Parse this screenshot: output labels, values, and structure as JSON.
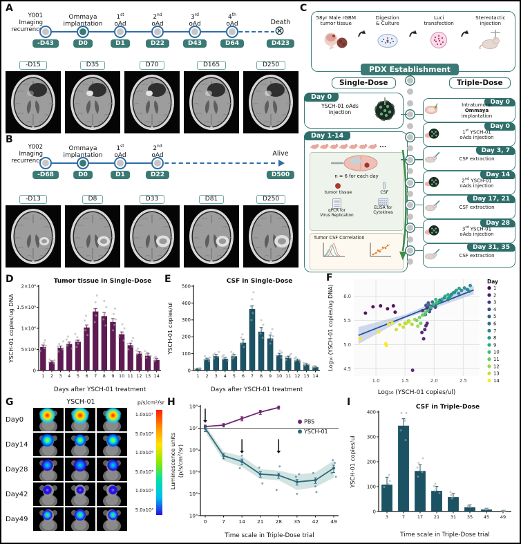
{
  "letters": {
    "A": "A",
    "B": "B",
    "C": "C",
    "D": "D",
    "E": "E",
    "F": "F",
    "G": "G",
    "H": "H",
    "I": "I"
  },
  "colors": {
    "teal_chip": "#3b7a74",
    "teal_border": "#3c7d78",
    "header_teal": "#2e6e6a",
    "node_line": "#2e6ca6",
    "bar_purple": "#5e1a52",
    "bar_teal": "#1c5364",
    "pbs": "#6f2472",
    "ysch": "#2e6b7c",
    "reg_line": "#1f4e9c",
    "reg_band": "#aabbdd",
    "viridis": [
      "#440154",
      "#471d6c",
      "#453581",
      "#3d4d8a",
      "#34618d",
      "#2b748e",
      "#24878e",
      "#1f998a",
      "#25ab82",
      "#3fbc73",
      "#67cc5c",
      "#97d83f",
      "#cade24",
      "#fde725"
    ]
  },
  "panelA": {
    "patient": {
      "l1": "Y001",
      "l2": "Imaging",
      "l3": "recurrence"
    },
    "events": [
      {
        "day": "-D43"
      },
      {
        "t1": "Ommaya",
        "t2": "implantation",
        "day": "D0",
        "filled": true
      },
      {
        "num": "1",
        "sup": "st",
        "word": "oAd",
        "day": "D1"
      },
      {
        "num": "2",
        "sup": "nd",
        "word": "oAd",
        "day": "D22"
      },
      {
        "num": "3",
        "sup": "rd",
        "word": "oAd",
        "day": "D43"
      },
      {
        "num": "4",
        "sup": "th",
        "word": "oAd",
        "day": "D64"
      }
    ],
    "terminal": {
      "label": "Death",
      "day": "D423",
      "type": "death",
      "icon": "⊗"
    },
    "mri_type": "dark",
    "mri": [
      {
        "label": "-D15",
        "bright": 0.35
      },
      {
        "label": "D35",
        "bright": 1
      },
      {
        "label": "D70",
        "bright": 1
      },
      {
        "label": "D165",
        "bright": 0.55
      },
      {
        "label": "D250",
        "bright": 0.6
      }
    ]
  },
  "panelB": {
    "patient": {
      "l1": "Y002",
      "l2": "Imaging",
      "l3": "recurrence"
    },
    "events": [
      {
        "day": "-D68"
      },
      {
        "t1": "Ommaya",
        "t2": "implantation",
        "day": "D0",
        "filled": true
      },
      {
        "num": "1",
        "sup": "st",
        "word": "oAd",
        "day": "D1"
      },
      {
        "num": "2",
        "sup": "nd",
        "word": "oAd",
        "day": "D22"
      }
    ],
    "terminal": {
      "label": "Alive",
      "day": "D500",
      "type": "alive"
    },
    "mri_type": "bright",
    "mri": [
      {
        "label": "-D13",
        "k": 0.8
      },
      {
        "label": "D8",
        "k": 1
      },
      {
        "label": "D33",
        "k": 1.12
      },
      {
        "label": "D81",
        "k": 1.05
      },
      {
        "label": "D250",
        "k": 1.2
      }
    ]
  },
  "panelC": {
    "flow": [
      {
        "l1": "58yr Male rGBM",
        "l2": "tumor tissue",
        "icon": "brain"
      },
      {
        "l1": "Digestion",
        "l2": "& Culture",
        "icon": "petri"
      },
      {
        "l1": "Luci",
        "l2": "transfection",
        "icon": "luci"
      },
      {
        "l1": "Stereotactic",
        "l2": "injection",
        "icon": "stereo"
      }
    ],
    "banner": "PDX Establishment",
    "arms": {
      "single": "Single-Dose",
      "triple": "Triple-Dose"
    },
    "single_day0": {
      "header": "Day 0",
      "l1": "YSCH-01 oAds",
      "l2": "injection"
    },
    "day114": {
      "header": "Day 1-14",
      "dots": "...",
      "n_label": "n = 6 for each day",
      "tumor": "tumor tissue",
      "csf": "CSF",
      "qpcr_l1": "qPCR for",
      "qpcr_l2": "Virus Replication",
      "elisa_l1": "ELISA for",
      "elisa_l2": "Cytokines",
      "corr": "Tumor CSF Correlation"
    },
    "triple": [
      {
        "header": "Day 0",
        "body": "Intratumoral\nOmmaya\nimplantation",
        "icon": "slice"
      },
      {
        "header": "Day 0",
        "body": "1st YSCH-01\noAds injection",
        "icon": "dish"
      },
      {
        "header": "Day 3, 7",
        "body": "CSF extraction",
        "icon": "syr"
      },
      {
        "header": "Day 14",
        "body": "2nd YSCH-01\noAds injection",
        "icon": "dish"
      },
      {
        "header": "Day 17, 21",
        "body": "CSF extraction",
        "icon": "syr"
      },
      {
        "header": "Day 28",
        "body": "3rd YSCH-01\noAds injection",
        "icon": "dish"
      },
      {
        "header": "Day 31, 35",
        "body": "CSF extraction",
        "icon": "syr"
      }
    ]
  },
  "chart_data": [
    {
      "id": "D",
      "type": "bar",
      "title": "Tumor tissue in Single-Dose",
      "ylabel": "YSCH-01 copies/ug DNA",
      "xlabel": "Days after YSCH-01 treatment",
      "categories": [
        "1",
        "2",
        "3",
        "4",
        "5",
        "6",
        "7",
        "8",
        "9",
        "10",
        "11",
        "12",
        "13",
        "14"
      ],
      "values": [
        560000,
        200000,
        540000,
        630000,
        680000,
        1020000,
        1400000,
        1290000,
        1150000,
        860000,
        600000,
        400000,
        350000,
        250000
      ],
      "errors": [
        45000,
        30000,
        40000,
        45000,
        40000,
        60000,
        70000,
        90000,
        80000,
        55000,
        50000,
        45000,
        60000,
        40000
      ],
      "bar_color": "#5e1a52",
      "ylim": [
        0,
        2000000
      ],
      "yticks": [
        {
          "v": 0,
          "label": "0"
        },
        {
          "v": 500000,
          "label": "5×10⁵"
        },
        {
          "v": 1000000,
          "label": "1×10⁶"
        },
        {
          "v": 1500000,
          "label": "1.5×10⁶"
        },
        {
          "v": 2000000,
          "label": "2×10⁶"
        }
      ]
    },
    {
      "id": "E",
      "type": "bar",
      "title": "CSF in Single-Dose",
      "ylabel": "YSCH-01 copies/ul",
      "xlabel": "Days after YSCH-01 treatment",
      "categories": [
        "1",
        "2",
        "3",
        "4",
        "5",
        "6",
        "7",
        "8",
        "9",
        "10",
        "11",
        "12",
        "13",
        "14"
      ],
      "values": [
        10,
        65,
        85,
        70,
        85,
        165,
        365,
        230,
        190,
        90,
        75,
        60,
        35,
        20
      ],
      "errors": [
        3,
        8,
        10,
        8,
        10,
        20,
        18,
        25,
        20,
        12,
        10,
        8,
        6,
        5
      ],
      "bar_color": "#1c5364",
      "ylim": [
        0,
        500
      ],
      "yticks": [
        {
          "v": 0,
          "label": "0"
        },
        {
          "v": 100,
          "label": "100"
        },
        {
          "v": 200,
          "label": "200"
        },
        {
          "v": 300,
          "label": "300"
        },
        {
          "v": 400,
          "label": "400"
        },
        {
          "v": 500,
          "label": "500"
        }
      ]
    },
    {
      "id": "F",
      "type": "scatter",
      "xlabel": "Log₁₀ (YSCH-01 copies/ul)",
      "ylabel": "Log₁₀ (YSCH-01 copies/ug DNA)",
      "legend_title": "Day",
      "xlim": [
        0.62,
        2.78
      ],
      "ylim": [
        4.35,
        6.35
      ],
      "xticks": [
        1.0,
        1.5,
        2.0,
        2.5
      ],
      "yticks": [
        4.5,
        5.0,
        5.5,
        6.0
      ],
      "regression": {
        "x1": 0.7,
        "y1": 5.19,
        "x2": 2.68,
        "y2": 6.13,
        "line_color": "#1f4e9c",
        "band_color": "#aabbdd",
        "band": [
          [
            0.7,
            5.36
          ],
          [
            1.5,
            5.62
          ],
          [
            2.68,
            6.22
          ],
          [
            2.68,
            6.04
          ],
          [
            1.5,
            5.54
          ],
          [
            0.7,
            5.01
          ]
        ]
      },
      "points": [
        [
          1,
          0.82,
          5.65
        ],
        [
          1,
          0.95,
          5.78
        ],
        [
          1,
          1.08,
          5.8
        ],
        [
          1,
          1.2,
          5.74
        ],
        [
          1,
          1.3,
          5.8
        ],
        [
          1,
          1.33,
          5.67
        ],
        [
          2,
          1.63,
          4.47
        ],
        [
          2,
          1.79,
          5.25
        ],
        [
          2,
          1.82,
          5.12
        ],
        [
          2,
          1.84,
          5.31
        ],
        [
          2,
          1.86,
          5.39
        ],
        [
          2,
          1.88,
          5.44
        ],
        [
          3,
          1.8,
          5.7
        ],
        [
          3,
          1.85,
          5.62
        ],
        [
          3,
          1.88,
          5.76
        ],
        [
          3,
          1.92,
          5.68
        ],
        [
          3,
          1.95,
          5.79
        ],
        [
          4,
          1.86,
          5.81
        ],
        [
          4,
          1.9,
          5.86
        ],
        [
          4,
          1.94,
          5.74
        ],
        [
          4,
          1.99,
          5.82
        ],
        [
          4,
          2.02,
          5.77
        ],
        [
          5,
          1.92,
          5.8
        ],
        [
          5,
          1.97,
          5.88
        ],
        [
          5,
          2.02,
          5.79
        ],
        [
          5,
          2.06,
          5.86
        ],
        [
          5,
          2.1,
          5.92
        ],
        [
          6,
          2.12,
          5.9
        ],
        [
          6,
          2.18,
          5.97
        ],
        [
          6,
          2.24,
          5.93
        ],
        [
          6,
          2.3,
          6.04
        ],
        [
          6,
          2.35,
          6.08
        ],
        [
          7,
          2.42,
          6.06
        ],
        [
          7,
          2.47,
          6.12
        ],
        [
          7,
          2.52,
          6.17
        ],
        [
          7,
          2.57,
          6.14
        ],
        [
          7,
          2.62,
          6.22
        ],
        [
          7,
          2.6,
          6.1
        ],
        [
          8,
          2.28,
          6.0
        ],
        [
          8,
          2.33,
          6.07
        ],
        [
          8,
          2.38,
          6.12
        ],
        [
          8,
          2.43,
          6.16
        ],
        [
          8,
          2.25,
          5.96
        ],
        [
          9,
          2.08,
          5.88
        ],
        [
          9,
          2.14,
          5.94
        ],
        [
          9,
          2.19,
          6.0
        ],
        [
          9,
          2.24,
          6.03
        ],
        [
          9,
          2.03,
          5.93
        ],
        [
          10,
          1.84,
          5.62
        ],
        [
          10,
          1.89,
          5.7
        ],
        [
          10,
          1.94,
          5.77
        ],
        [
          10,
          1.99,
          5.83
        ],
        [
          10,
          2.04,
          5.86
        ],
        [
          11,
          1.7,
          5.5
        ],
        [
          11,
          1.75,
          5.56
        ],
        [
          11,
          1.8,
          5.61
        ],
        [
          11,
          1.85,
          5.66
        ],
        [
          11,
          1.77,
          5.44
        ],
        [
          12,
          1.5,
          5.44
        ],
        [
          12,
          1.56,
          5.49
        ],
        [
          12,
          1.62,
          5.42
        ],
        [
          12,
          1.67,
          5.52
        ],
        [
          12,
          1.72,
          5.38
        ],
        [
          13,
          1.35,
          5.31
        ],
        [
          13,
          1.41,
          5.41
        ],
        [
          13,
          1.47,
          5.36
        ],
        [
          13,
          1.52,
          5.44
        ],
        [
          13,
          1.57,
          5.47
        ],
        [
          14,
          0.73,
          5.12
        ],
        [
          14,
          1.05,
          5.26
        ],
        [
          14,
          1.17,
          5.02
        ],
        [
          14,
          1.22,
          5.42
        ],
        [
          14,
          1.28,
          5.45
        ],
        [
          14,
          1.18,
          4.98
        ]
      ],
      "legend_days": [
        "1",
        "2",
        "3",
        "4",
        "5",
        "6",
        "7",
        "8",
        "9",
        "10",
        "11",
        "12",
        "13",
        "14"
      ]
    },
    {
      "id": "H",
      "type": "line",
      "ylabel1": "Luminescence units",
      "ylabel2": "(p/s/cm²/sr)",
      "xlabel": "Time scale in Triple-Dose trial",
      "xticks": [
        0,
        7,
        14,
        21,
        28,
        35,
        42,
        49
      ],
      "exp_range": [
        3,
        8
      ],
      "ytick_labels": [
        "10³",
        "10⁴",
        "10⁵",
        "10⁶",
        "10⁷",
        "10⁸"
      ],
      "ref": 10000000,
      "series": [
        {
          "name": "PBS",
          "color": "#6f2472",
          "x": [
            0,
            7,
            14,
            21,
            28
          ],
          "v": [
            12000000,
            14000000,
            28000000,
            55000000,
            90000000
          ],
          "el": [
            2000000,
            2500000,
            6000000,
            12000000,
            15000000
          ]
        },
        {
          "name": "YSCH-01",
          "color": "#2e6b7c",
          "x": [
            0,
            7,
            14,
            21,
            28,
            35,
            42,
            49
          ],
          "v": [
            10000000,
            550000,
            300000,
            80000,
            70000,
            35000,
            42000,
            150000
          ],
          "el": [
            3000000,
            150000,
            90000,
            22000,
            19000,
            10000,
            12000,
            55000
          ],
          "band_lo": [
            6500000,
            330000,
            170000,
            48000,
            42000,
            15000,
            20000,
            55000
          ],
          "band_hi": [
            14000000,
            850000,
            520000,
            135000,
            115000,
            75000,
            95000,
            330000
          ]
        }
      ],
      "dots": [
        [
          14,
          150000
        ],
        [
          14,
          560000
        ],
        [
          21,
          30000
        ],
        [
          21,
          160000
        ],
        [
          28,
          180000
        ],
        [
          28,
          15000
        ],
        [
          35,
          10000
        ],
        [
          35,
          80000
        ],
        [
          35,
          60000
        ],
        [
          42,
          12000
        ],
        [
          42,
          90000
        ],
        [
          42,
          22000
        ],
        [
          49,
          60000
        ],
        [
          49,
          350000
        ],
        [
          49,
          260000
        ],
        [
          49,
          90000
        ],
        [
          0,
          9000000
        ]
      ],
      "arrows": [
        [
          0,
          7.9,
          7.25
        ],
        [
          14,
          6.5,
          5.85
        ],
        [
          28,
          6.5,
          5.85
        ]
      ]
    },
    {
      "id": "I",
      "type": "bar",
      "title": "CSF in Triple-Dose",
      "ylabel": "YSCH-01 copies/ul",
      "xlabel": "Time scale in Triple-Dose trial",
      "categories": [
        "3",
        "7",
        "17",
        "21",
        "31",
        "35",
        "45",
        "49"
      ],
      "values": [
        108,
        345,
        163,
        83,
        58,
        17,
        8,
        2
      ],
      "errors": [
        30,
        28,
        25,
        18,
        15,
        10,
        5,
        2
      ],
      "bar_color": "#1c5364",
      "ylim": [
        0,
        400
      ],
      "yticks": [
        {
          "v": 0,
          "label": "0"
        },
        {
          "v": 100,
          "label": "100"
        },
        {
          "v": 200,
          "label": "200"
        },
        {
          "v": 300,
          "label": "300"
        },
        {
          "v": 400,
          "label": "400"
        }
      ]
    }
  ],
  "panelG": {
    "title": "YSCH-01",
    "rows": [
      {
        "label": "Day0",
        "blob": [
          "#ff1e00",
          "#ffe400",
          "#00d0ff"
        ],
        "size": 12
      },
      {
        "label": "Day14",
        "blob": [
          "#c8ff00",
          "#00e8c8",
          "#0044ff"
        ],
        "size": 9
      },
      {
        "label": "Day28",
        "blob": [
          "#00e0c0",
          "#0080ff",
          "#3000d0"
        ],
        "size": 9
      },
      {
        "label": "Day42",
        "blob": [
          "#66a0ff",
          "#2a10e0",
          "#2a10e0"
        ],
        "size": 6
      },
      {
        "label": "Day49",
        "blob": [
          "#70e830",
          "#00c0ff",
          "#2a10e0"
        ],
        "size": 8
      }
    ],
    "scale": {
      "title": "p/s/cm²/sr",
      "labels": [
        "1.0x10⁷",
        "5.0x10⁶",
        "1.0x10⁶",
        "5.0x10⁵",
        "1.0x10⁵",
        "5.0x10⁴"
      ]
    }
  }
}
